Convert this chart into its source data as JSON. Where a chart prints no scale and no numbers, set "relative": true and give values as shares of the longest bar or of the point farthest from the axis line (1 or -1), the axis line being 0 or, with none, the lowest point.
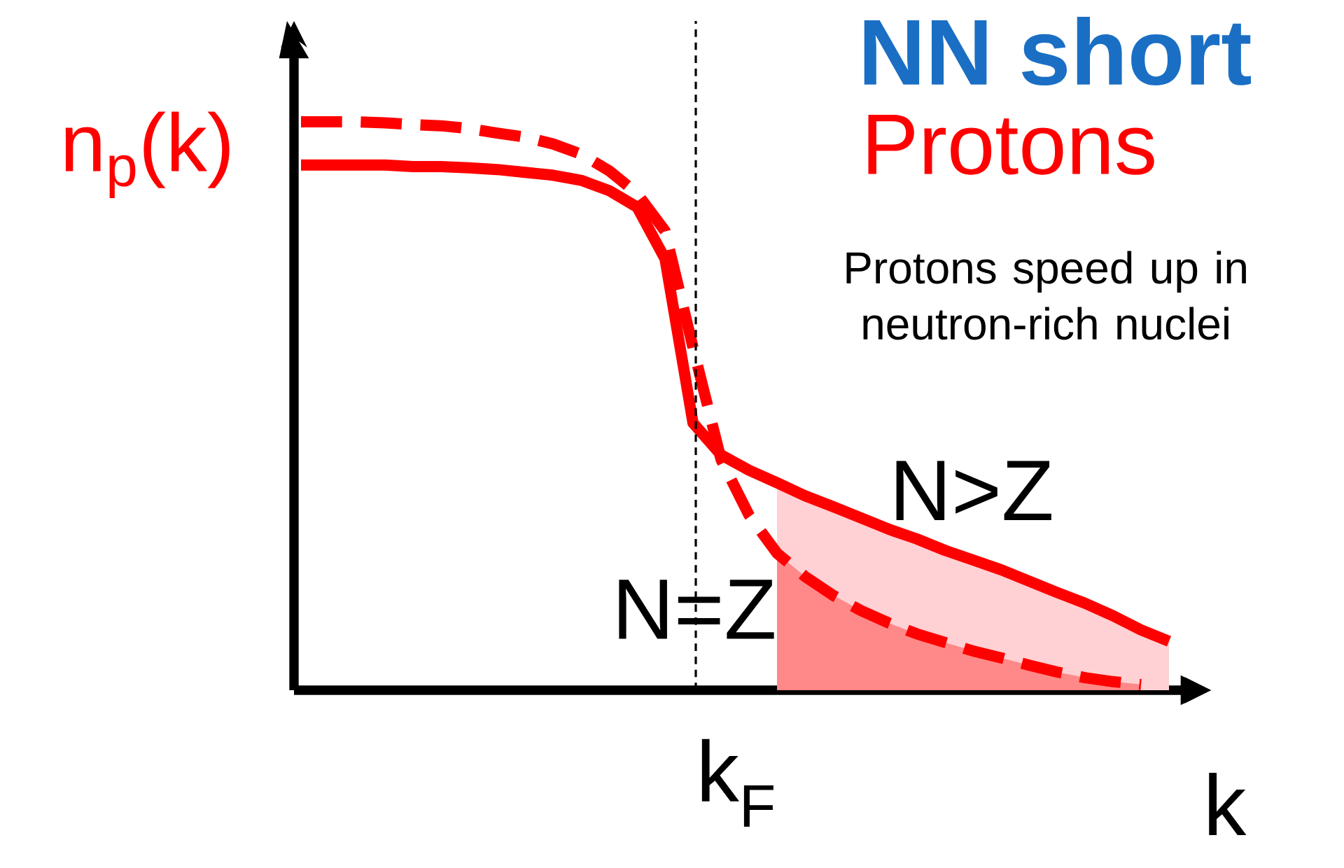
{
  "chart_data": {
    "type": "line",
    "title": "NN short",
    "subtitle": "Protons",
    "xlabel": "k",
    "ylabel": "n$_{p}$(k)",
    "relative": true,
    "annotations": [
      "Protons speed up in neutron-rich nuclei",
      "k$_{F}$"
    ],
    "categories": [
      null,
      null,
      null,
      null,
      null,
      null,
      null,
      null,
      null,
      null,
      null,
      null,
      null,
      null,
      null,
      null,
      null,
      null,
      null,
      null,
      null,
      null,
      null,
      null,
      null,
      null,
      null,
      null,
      null,
      null,
      null,
      null
    ],
    "series": [
      {
        "type": "area",
        "color": "#ffd0d4",
        "values": [
          null,
          null,
          null,
          null,
          null,
          null,
          null,
          null,
          null,
          null,
          null,
          null,
          null,
          null,
          null,
          null,
          null,
          0.365,
          0.342,
          0.323,
          0.303,
          0.283,
          0.266,
          0.246,
          0.229,
          0.212,
          0.192,
          0.172,
          0.153,
          0.131,
          0.106,
          0.086
        ]
      },
      {
        "type": "area",
        "color": "#ff8888",
        "values": [
          null,
          null,
          null,
          null,
          null,
          null,
          null,
          null,
          null,
          null,
          null,
          null,
          null,
          null,
          null,
          null,
          null,
          0.241,
          0.2,
          0.167,
          0.14,
          0.118,
          0.099,
          0.084,
          0.069,
          0.057,
          0.044,
          0.032,
          0.022,
          0.015,
          0.01,
          null
        ]
      },
      {
        "name": "N>Z",
        "color": "#ff0000",
        "line_style": "solid",
        "values": [
          0.924,
          0.924,
          0.924,
          0.924,
          0.921,
          0.921,
          0.919,
          0.916,
          0.911,
          0.906,
          0.897,
          0.879,
          0.85,
          0.759,
          0.47,
          0.414,
          0.387,
          0.365,
          0.342,
          0.323,
          0.303,
          0.283,
          0.266,
          0.246,
          0.229,
          0.212,
          0.192,
          0.172,
          0.153,
          0.131,
          0.106,
          0.086
        ]
      },
      {
        "name": "N=Z",
        "color": "#ff0000",
        "line_style": "dashed",
        "values": [
          1.0,
          1.0,
          1.0,
          0.998,
          0.995,
          0.993,
          0.988,
          0.98,
          0.973,
          0.961,
          0.943,
          0.914,
          0.874,
          0.808,
          0.603,
          0.406,
          0.308,
          0.241,
          0.2,
          0.167,
          0.14,
          0.118,
          0.099,
          0.084,
          0.069,
          0.057,
          0.044,
          0.032,
          0.022,
          0.015,
          0.01,
          null
        ]
      }
    ]
  }
}
